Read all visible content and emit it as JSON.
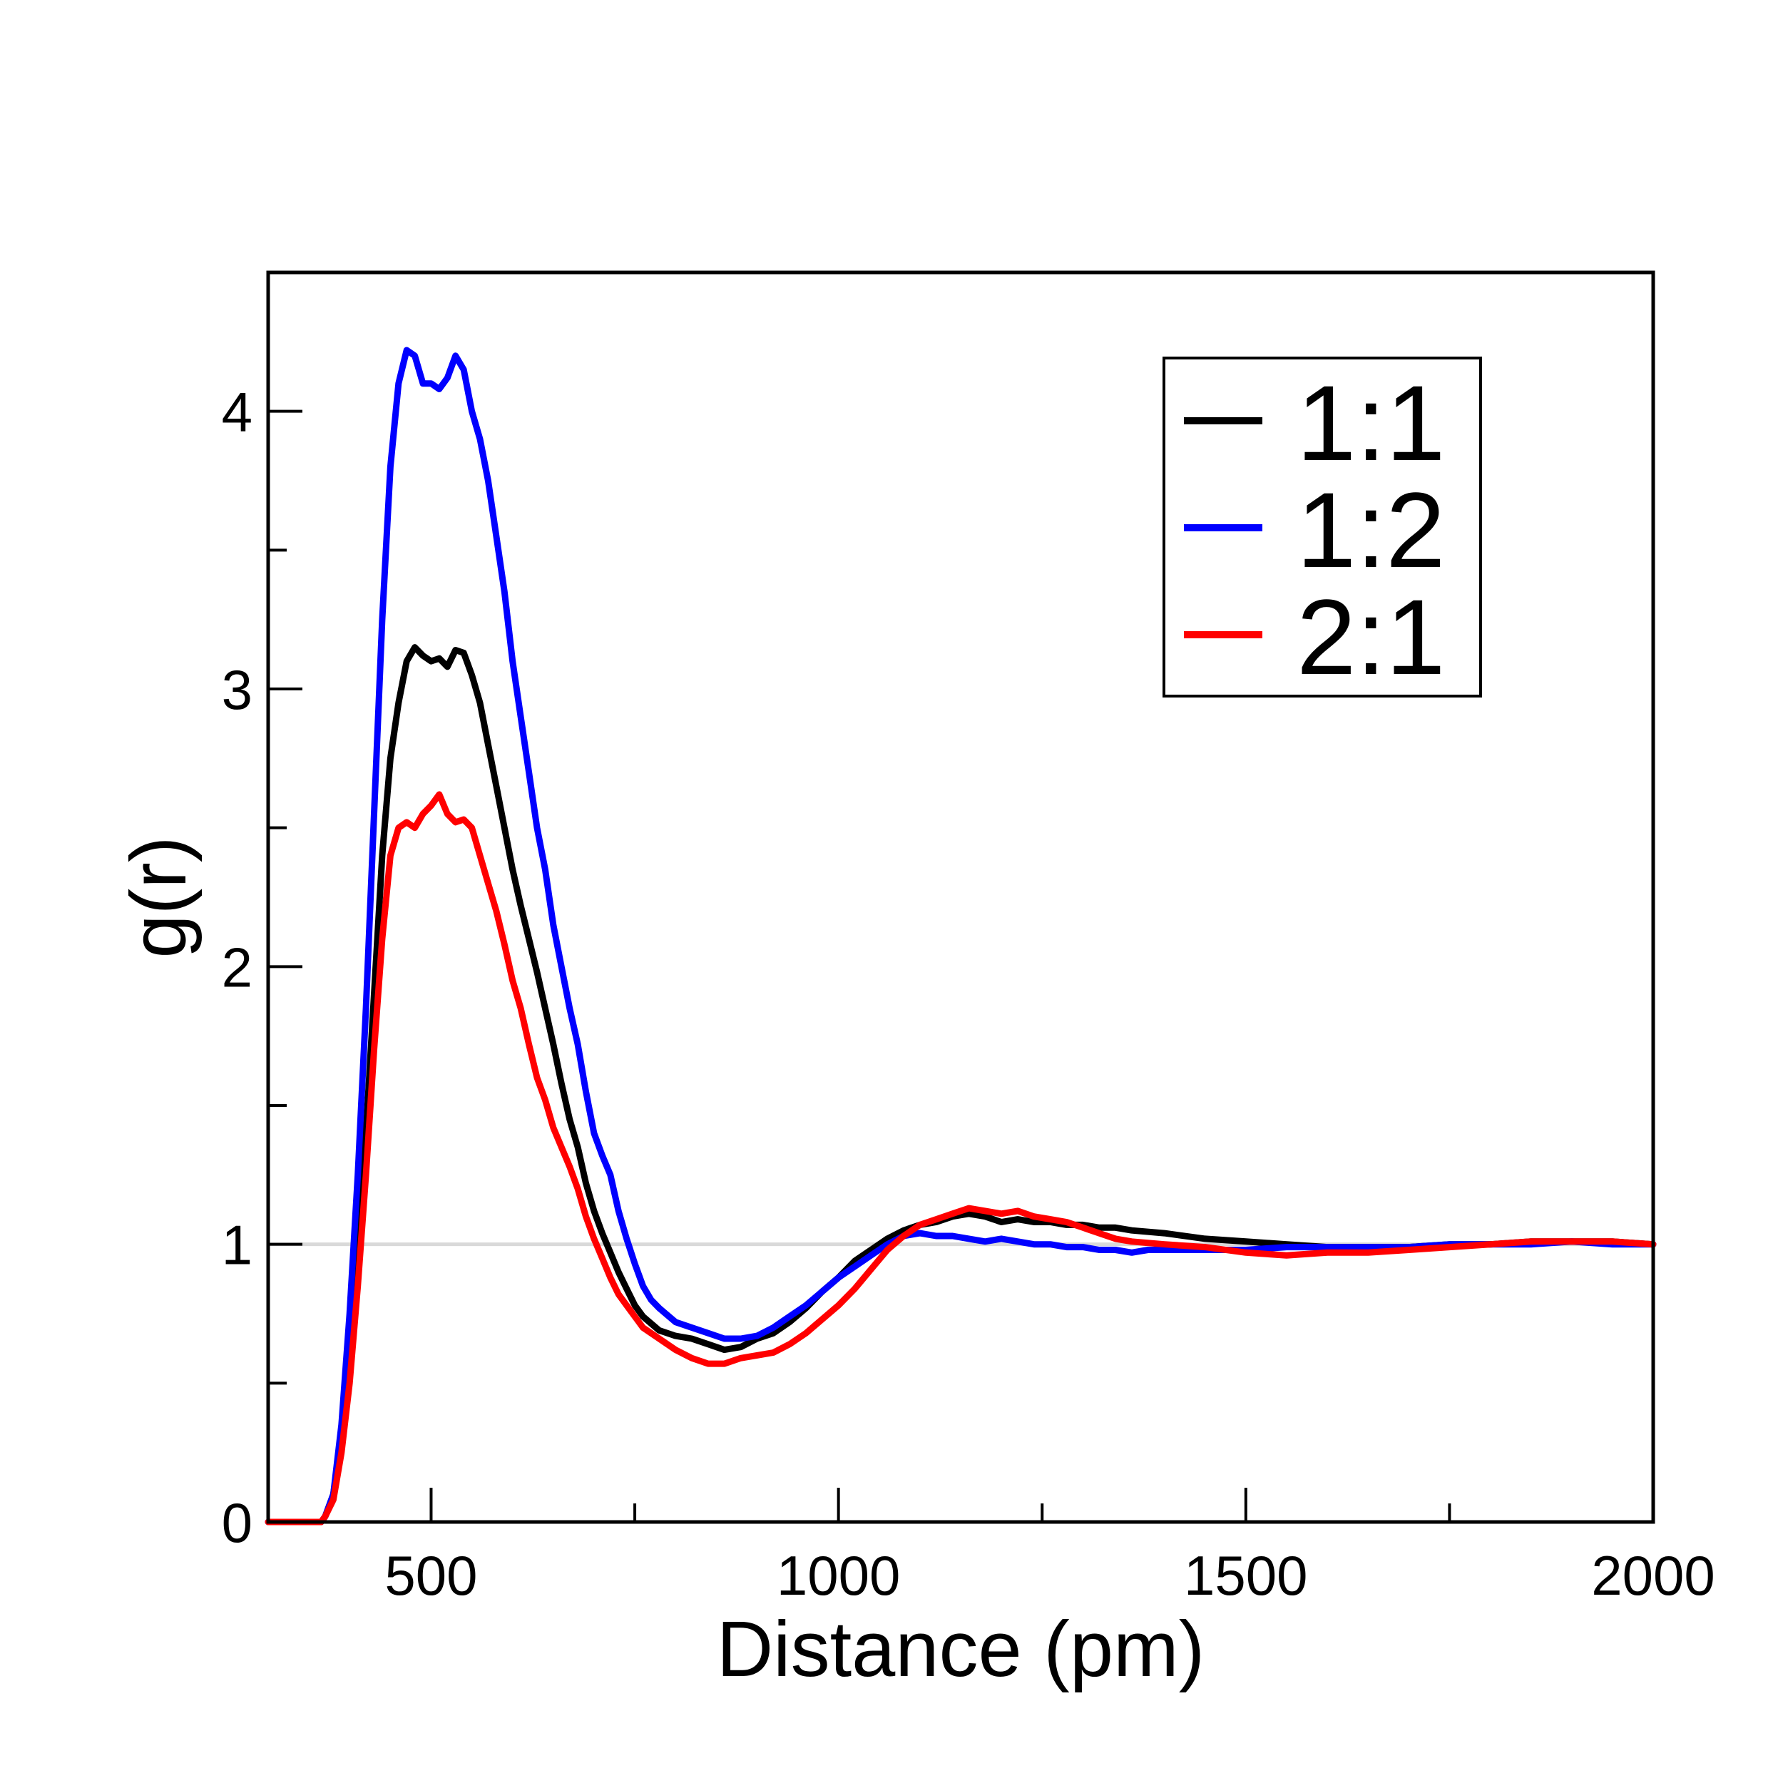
{
  "chart_data": {
    "type": "line",
    "title": "",
    "xlabel": "Distance (pm)",
    "ylabel": "g(r)",
    "xlim": [
      300,
      2000
    ],
    "ylim": [
      0,
      4.5
    ],
    "x_ticks": [
      "500",
      "1000",
      "1500",
      "2000"
    ],
    "y_ticks": [
      "0",
      "1",
      "2",
      "3",
      "4"
    ],
    "reference_line": {
      "y": 1,
      "color": "#d9d9d9"
    },
    "grid": false,
    "legend": {
      "position": "top-right"
    },
    "series": [
      {
        "name": "1:1",
        "color": "#000000",
        "points": [
          [
            300,
            0
          ],
          [
            365,
            0
          ],
          [
            370,
            0.02
          ],
          [
            380,
            0.1
          ],
          [
            390,
            0.3
          ],
          [
            400,
            0.6
          ],
          [
            410,
            0.95
          ],
          [
            420,
            1.4
          ],
          [
            430,
            1.9
          ],
          [
            440,
            2.4
          ],
          [
            450,
            2.75
          ],
          [
            460,
            2.95
          ],
          [
            470,
            3.1
          ],
          [
            480,
            3.15
          ],
          [
            490,
            3.12
          ],
          [
            500,
            3.1
          ],
          [
            510,
            3.11
          ],
          [
            520,
            3.08
          ],
          [
            530,
            3.14
          ],
          [
            540,
            3.13
          ],
          [
            550,
            3.05
          ],
          [
            560,
            2.95
          ],
          [
            570,
            2.8
          ],
          [
            580,
            2.65
          ],
          [
            590,
            2.5
          ],
          [
            600,
            2.35
          ],
          [
            610,
            2.22
          ],
          [
            620,
            2.1
          ],
          [
            630,
            1.98
          ],
          [
            640,
            1.85
          ],
          [
            650,
            1.72
          ],
          [
            660,
            1.58
          ],
          [
            670,
            1.45
          ],
          [
            680,
            1.35
          ],
          [
            690,
            1.22
          ],
          [
            700,
            1.12
          ],
          [
            710,
            1.04
          ],
          [
            720,
            0.97
          ],
          [
            730,
            0.9
          ],
          [
            740,
            0.84
          ],
          [
            750,
            0.78
          ],
          [
            760,
            0.74
          ],
          [
            780,
            0.69
          ],
          [
            800,
            0.67
          ],
          [
            820,
            0.66
          ],
          [
            840,
            0.64
          ],
          [
            860,
            0.62
          ],
          [
            880,
            0.63
          ],
          [
            900,
            0.66
          ],
          [
            920,
            0.68
          ],
          [
            940,
            0.72
          ],
          [
            960,
            0.77
          ],
          [
            980,
            0.83
          ],
          [
            1000,
            0.88
          ],
          [
            1020,
            0.94
          ],
          [
            1040,
            0.98
          ],
          [
            1060,
            1.02
          ],
          [
            1080,
            1.05
          ],
          [
            1100,
            1.07
          ],
          [
            1120,
            1.08
          ],
          [
            1140,
            1.1
          ],
          [
            1160,
            1.11
          ],
          [
            1180,
            1.1
          ],
          [
            1200,
            1.08
          ],
          [
            1220,
            1.09
          ],
          [
            1240,
            1.08
          ],
          [
            1260,
            1.08
          ],
          [
            1280,
            1.07
          ],
          [
            1300,
            1.07
          ],
          [
            1320,
            1.06
          ],
          [
            1340,
            1.06
          ],
          [
            1360,
            1.05
          ],
          [
            1400,
            1.04
          ],
          [
            1450,
            1.02
          ],
          [
            1500,
            1.01
          ],
          [
            1550,
            1.0
          ],
          [
            1600,
            0.99
          ],
          [
            1650,
            0.99
          ],
          [
            1700,
            0.99
          ],
          [
            1750,
            1.0
          ],
          [
            1800,
            1.0
          ],
          [
            1850,
            1.01
          ],
          [
            1900,
            1.01
          ],
          [
            1950,
            1.01
          ],
          [
            2000,
            1.0
          ]
        ]
      },
      {
        "name": "1:2",
        "color": "#0000ff",
        "points": [
          [
            300,
            0
          ],
          [
            365,
            0
          ],
          [
            370,
            0.02
          ],
          [
            380,
            0.1
          ],
          [
            390,
            0.35
          ],
          [
            400,
            0.75
          ],
          [
            410,
            1.25
          ],
          [
            420,
            1.85
          ],
          [
            430,
            2.55
          ],
          [
            440,
            3.25
          ],
          [
            450,
            3.8
          ],
          [
            460,
            4.1
          ],
          [
            470,
            4.22
          ],
          [
            480,
            4.2
          ],
          [
            490,
            4.1
          ],
          [
            500,
            4.1
          ],
          [
            510,
            4.08
          ],
          [
            520,
            4.12
          ],
          [
            530,
            4.2
          ],
          [
            540,
            4.15
          ],
          [
            550,
            4.0
          ],
          [
            560,
            3.9
          ],
          [
            570,
            3.75
          ],
          [
            580,
            3.55
          ],
          [
            590,
            3.35
          ],
          [
            600,
            3.1
          ],
          [
            610,
            2.9
          ],
          [
            620,
            2.7
          ],
          [
            630,
            2.5
          ],
          [
            640,
            2.35
          ],
          [
            650,
            2.15
          ],
          [
            660,
            2.0
          ],
          [
            670,
            1.85
          ],
          [
            680,
            1.72
          ],
          [
            690,
            1.55
          ],
          [
            700,
            1.4
          ],
          [
            710,
            1.32
          ],
          [
            720,
            1.25
          ],
          [
            730,
            1.12
          ],
          [
            740,
            1.02
          ],
          [
            750,
            0.93
          ],
          [
            760,
            0.85
          ],
          [
            770,
            0.8
          ],
          [
            780,
            0.77
          ],
          [
            800,
            0.72
          ],
          [
            820,
            0.7
          ],
          [
            840,
            0.68
          ],
          [
            860,
            0.66
          ],
          [
            880,
            0.66
          ],
          [
            900,
            0.67
          ],
          [
            920,
            0.7
          ],
          [
            940,
            0.74
          ],
          [
            960,
            0.78
          ],
          [
            980,
            0.83
          ],
          [
            1000,
            0.88
          ],
          [
            1020,
            0.92
          ],
          [
            1040,
            0.96
          ],
          [
            1060,
            1.0
          ],
          [
            1080,
            1.03
          ],
          [
            1100,
            1.04
          ],
          [
            1120,
            1.03
          ],
          [
            1140,
            1.03
          ],
          [
            1160,
            1.02
          ],
          [
            1180,
            1.01
          ],
          [
            1200,
            1.02
          ],
          [
            1220,
            1.01
          ],
          [
            1240,
            1.0
          ],
          [
            1260,
            1.0
          ],
          [
            1280,
            0.99
          ],
          [
            1300,
            0.99
          ],
          [
            1320,
            0.98
          ],
          [
            1340,
            0.98
          ],
          [
            1360,
            0.97
          ],
          [
            1380,
            0.98
          ],
          [
            1400,
            0.98
          ],
          [
            1450,
            0.98
          ],
          [
            1500,
            0.98
          ],
          [
            1550,
            0.99
          ],
          [
            1600,
            0.99
          ],
          [
            1650,
            0.99
          ],
          [
            1700,
            0.99
          ],
          [
            1750,
            1.0
          ],
          [
            1800,
            1.0
          ],
          [
            1850,
            1.0
          ],
          [
            1900,
            1.01
          ],
          [
            1950,
            1.0
          ],
          [
            2000,
            1.0
          ]
        ]
      },
      {
        "name": "2:1",
        "color": "#ff0000",
        "points": [
          [
            300,
            0
          ],
          [
            365,
            0
          ],
          [
            370,
            0.02
          ],
          [
            380,
            0.08
          ],
          [
            390,
            0.25
          ],
          [
            400,
            0.5
          ],
          [
            410,
            0.85
          ],
          [
            420,
            1.25
          ],
          [
            430,
            1.7
          ],
          [
            440,
            2.1
          ],
          [
            450,
            2.4
          ],
          [
            460,
            2.5
          ],
          [
            470,
            2.52
          ],
          [
            480,
            2.5
          ],
          [
            490,
            2.55
          ],
          [
            500,
            2.58
          ],
          [
            510,
            2.62
          ],
          [
            520,
            2.55
          ],
          [
            530,
            2.52
          ],
          [
            540,
            2.53
          ],
          [
            550,
            2.5
          ],
          [
            560,
            2.4
          ],
          [
            570,
            2.3
          ],
          [
            580,
            2.2
          ],
          [
            590,
            2.08
          ],
          [
            600,
            1.95
          ],
          [
            610,
            1.85
          ],
          [
            620,
            1.72
          ],
          [
            630,
            1.6
          ],
          [
            640,
            1.52
          ],
          [
            650,
            1.42
          ],
          [
            660,
            1.35
          ],
          [
            670,
            1.28
          ],
          [
            680,
            1.2
          ],
          [
            690,
            1.1
          ],
          [
            700,
            1.02
          ],
          [
            710,
            0.95
          ],
          [
            720,
            0.88
          ],
          [
            730,
            0.82
          ],
          [
            740,
            0.78
          ],
          [
            750,
            0.74
          ],
          [
            760,
            0.7
          ],
          [
            780,
            0.66
          ],
          [
            800,
            0.62
          ],
          [
            820,
            0.59
          ],
          [
            840,
            0.57
          ],
          [
            860,
            0.57
          ],
          [
            880,
            0.59
          ],
          [
            900,
            0.6
          ],
          [
            920,
            0.61
          ],
          [
            940,
            0.64
          ],
          [
            960,
            0.68
          ],
          [
            980,
            0.73
          ],
          [
            1000,
            0.78
          ],
          [
            1020,
            0.84
          ],
          [
            1040,
            0.91
          ],
          [
            1060,
            0.98
          ],
          [
            1080,
            1.03
          ],
          [
            1100,
            1.07
          ],
          [
            1120,
            1.09
          ],
          [
            1140,
            1.11
          ],
          [
            1160,
            1.13
          ],
          [
            1180,
            1.12
          ],
          [
            1200,
            1.11
          ],
          [
            1220,
            1.12
          ],
          [
            1240,
            1.1
          ],
          [
            1260,
            1.09
          ],
          [
            1280,
            1.08
          ],
          [
            1300,
            1.06
          ],
          [
            1320,
            1.04
          ],
          [
            1340,
            1.02
          ],
          [
            1360,
            1.01
          ],
          [
            1400,
            1.0
          ],
          [
            1450,
            0.99
          ],
          [
            1500,
            0.97
          ],
          [
            1550,
            0.96
          ],
          [
            1600,
            0.97
          ],
          [
            1650,
            0.97
          ],
          [
            1700,
            0.98
          ],
          [
            1750,
            0.99
          ],
          [
            1800,
            1.0
          ],
          [
            1850,
            1.01
          ],
          [
            1900,
            1.01
          ],
          [
            1950,
            1.01
          ],
          [
            2000,
            1.0
          ]
        ]
      }
    ]
  }
}
